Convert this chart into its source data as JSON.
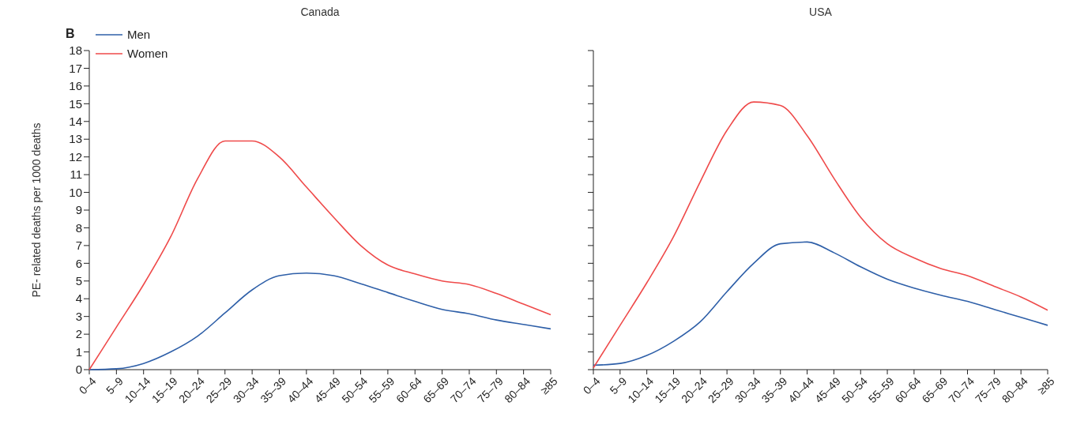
{
  "chart_data": [
    {
      "type": "line",
      "title": "Canada",
      "ylabel": "PE- related deaths per 1000 deaths",
      "annotations": [
        "B"
      ],
      "legend": "top left",
      "marker": "none",
      "line_style": "solid",
      "categories": [
        "0–4",
        "5–9",
        "10–14",
        "15–19",
        "20–24",
        "25–29",
        "30–34",
        "35–39",
        "40–44",
        "45–49",
        "50–54",
        "55–59",
        "60–64",
        "65–69",
        "70–74",
        "75–79",
        "80–84",
        "≥85"
      ],
      "ylim": [
        0,
        18
      ],
      "yticks": [
        0,
        1,
        2,
        3,
        4,
        5,
        6,
        7,
        8,
        9,
        10,
        11,
        12,
        13,
        14,
        15,
        16,
        17,
        18
      ],
      "series": [
        {
          "name": "Men",
          "color": "#2e5fa8",
          "values": [
            0,
            0.05,
            0.35,
            1.0,
            1.9,
            3.2,
            4.5,
            5.3,
            5.45,
            5.3,
            4.85,
            4.35,
            3.85,
            3.4,
            3.15,
            2.8,
            2.55,
            2.3
          ]
        },
        {
          "name": "Women",
          "color": "#ef4a4a",
          "values": [
            0,
            2.4,
            4.8,
            7.5,
            10.8,
            12.9,
            12.9,
            12.0,
            10.3,
            8.6,
            7.0,
            5.9,
            5.4,
            5.0,
            4.8,
            4.3,
            3.7,
            3.1
          ]
        }
      ]
    },
    {
      "type": "line",
      "title": "USA",
      "marker": "none",
      "line_style": "solid",
      "tick_labels": "x",
      "categories": [
        "0–4",
        "5–9",
        "10–14",
        "15–19",
        "20–24",
        "25–29",
        "30–34",
        "35–39",
        "40–44",
        "45–49",
        "50–54",
        "55–59",
        "60–64",
        "65–69",
        "70–74",
        "75–79",
        "80–84",
        "≥85"
      ],
      "ylim": [
        0,
        18
      ],
      "yticks": [
        {
          "value": 0,
          "label": null
        },
        {
          "value": 1,
          "label": null
        },
        {
          "value": 2,
          "label": null
        },
        {
          "value": 3,
          "label": null
        },
        {
          "value": 4,
          "label": null
        },
        {
          "value": 5,
          "label": null
        },
        {
          "value": 6,
          "label": null
        },
        {
          "value": 7,
          "label": null
        },
        {
          "value": 8,
          "label": null
        },
        {
          "value": 9,
          "label": null
        },
        {
          "value": 10,
          "label": null
        },
        {
          "value": 11,
          "label": null
        },
        {
          "value": 12,
          "label": null
        },
        {
          "value": 13,
          "label": null
        },
        {
          "value": 14,
          "label": null
        },
        {
          "value": 15,
          "label": null
        },
        {
          "value": 16,
          "label": null
        },
        {
          "value": 18,
          "label": null
        }
      ],
      "series": [
        {
          "color": "#2e5fa8",
          "values": [
            0.25,
            0.35,
            0.8,
            1.6,
            2.7,
            4.4,
            6.0,
            7.1,
            7.2,
            6.6,
            5.8,
            5.1,
            4.6,
            4.2,
            3.85,
            3.4,
            2.95,
            2.5
          ]
        },
        {
          "color": "#ef4a4a",
          "values": [
            0.1,
            2.5,
            4.9,
            7.5,
            10.6,
            13.5,
            15.1,
            14.9,
            13.2,
            10.8,
            8.6,
            7.1,
            6.3,
            5.7,
            5.3,
            4.7,
            4.1,
            3.35
          ]
        }
      ]
    }
  ]
}
